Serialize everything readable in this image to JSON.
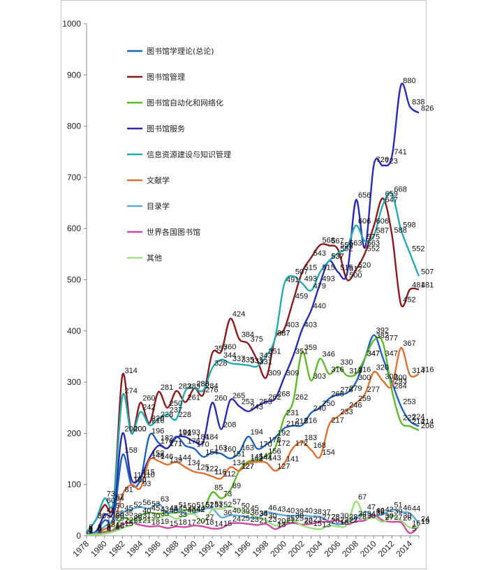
{
  "chart_data": {
    "type": "line",
    "title": "",
    "xlabel": "",
    "ylabel": "",
    "ylim": [
      0,
      1000
    ],
    "yticks": [
      0,
      100,
      200,
      300,
      400,
      500,
      600,
      700,
      800,
      900,
      1000
    ],
    "xticks": [
      1978,
      1980,
      1982,
      1984,
      1986,
      1988,
      1990,
      1992,
      1994,
      1996,
      1998,
      2000,
      2002,
      2004,
      2006,
      2008,
      2010,
      2012,
      2014
    ],
    "x": [
      1978,
      1979,
      1980,
      1981,
      1982,
      1983,
      1984,
      1985,
      1986,
      1987,
      1988,
      1989,
      1990,
      1991,
      1992,
      1993,
      1994,
      1995,
      1996,
      1997,
      1998,
      1999,
      2000,
      2001,
      2002,
      2003,
      2004,
      2005,
      2006,
      2007,
      2008,
      2009,
      2010,
      2011,
      2012,
      2013,
      2014,
      2015
    ],
    "grid": false,
    "legend_position": "top-left",
    "series": [
      {
        "name": "图书馆学理论(总论)",
        "color": "#1f63b8",
        "values": [
          3,
          8,
          30,
          35,
          158,
          100,
          110,
          196,
          182,
          171,
          194,
          176,
          170,
          154,
          163,
          160,
          151,
          163,
          194,
          170,
          178,
          192,
          210,
          215,
          216,
          240,
          250,
          268,
          276,
          279,
          300,
          347,
          392,
          347,
          300,
          253,
          224,
          214
        ]
      },
      {
        "name": "图书馆管理",
        "color": "#8b1a1a",
        "values": [
          5,
          30,
          60,
          64,
          314,
          200,
          260,
          220,
          281,
          250,
          283,
          261,
          288,
          276,
          357,
          360,
          424,
          384,
          375,
          343,
          309,
          387,
          403,
          459,
          515,
          543,
          568,
          567,
          559,
          500,
          520,
          552,
          606,
          659,
          588,
          452,
          481,
          481
        ]
      },
      {
        "name": "图书馆自动化和网络化",
        "color": "#5fba2a",
        "values": [
          2,
          4,
          8,
          12,
          35,
          30,
          40,
          45,
          43,
          45,
          45,
          50,
          51,
          51,
          85,
          73,
          89,
          127,
          145,
          147,
          156,
          172,
          231,
          262,
          359,
          303,
          346,
          316,
          330,
          313,
          316,
          347,
          382,
          377,
          284,
          222,
          214,
          206
        ]
      },
      {
        "name": "图书馆服务",
        "color": "#2a2ab0",
        "values": [
          3,
          6,
          41,
          50,
          200,
          110,
          115,
          152,
          176,
          171,
          192,
          193,
          184,
          184,
          260,
          208,
          265,
          253,
          243,
          253,
          262,
          268,
          309,
          351,
          403,
          440,
          493,
          537,
          515,
          512,
          656,
          563,
          726,
          723,
          741,
          880,
          838,
          826
        ]
      },
      {
        "name": "信息资源建设与知识管理",
        "color": "#25aab0",
        "values": [
          8,
          30,
          73,
          67,
          274,
          200,
          242,
          216,
          228,
          237,
          228,
          283,
          288,
          284,
          328,
          344,
          337,
          335,
          333,
          331,
          351,
          387,
          491,
          507,
          493,
          479,
          515,
          537,
          552,
          563,
          606,
          575,
          587,
          647,
          668,
          598,
          552,
          507
        ]
      },
      {
        "name": "文献学",
        "color": "#e07030",
        "values": [
          1,
          5,
          13,
          25,
          81,
          100,
          93,
          148,
          146,
          139,
          144,
          134,
          125,
          122,
          116,
          112,
          134,
          127,
          142,
          144,
          143,
          127,
          141,
          172,
          183,
          168,
          154,
          217,
          233,
          246,
          259,
          277,
          320,
          302,
          293,
          367,
          314,
          316
        ]
      },
      {
        "name": "目录学",
        "color": "#5aaae0",
        "values": [
          2,
          5,
          18,
          30,
          45,
          52,
          56,
          53,
          63,
          44,
          51,
          43,
          44,
          52,
          53,
          36,
          40,
          39,
          36,
          34,
          46,
          43,
          40,
          39,
          40,
          38,
          37,
          28,
          22,
          28,
          34,
          47,
          39,
          42,
          51,
          46,
          44,
          24
        ]
      },
      {
        "name": "世界各国图书馆",
        "color": "#d04aa0",
        "values": [
          1,
          2,
          6,
          10,
          22,
          25,
          21,
          18,
          19,
          15,
          18,
          17,
          20,
          18,
          14,
          15,
          24,
          25,
          23,
          21,
          23,
          13,
          21,
          25,
          22,
          23,
          27,
          28,
          30,
          22,
          28,
          30,
          40,
          30,
          27,
          26,
          5,
          19
        ]
      },
      {
        "name": "其他",
        "color": "#98e07a",
        "values": [
          1,
          2,
          4,
          8,
          15,
          21,
          31,
          30,
          35,
          40,
          33,
          40,
          42,
          27,
          51,
          52,
          57,
          50,
          45,
          35,
          30,
          20,
          25,
          30,
          20,
          15,
          13,
          20,
          18,
          22,
          67,
          34,
          36,
          27,
          39,
          30,
          16,
          19
        ]
      }
    ]
  }
}
